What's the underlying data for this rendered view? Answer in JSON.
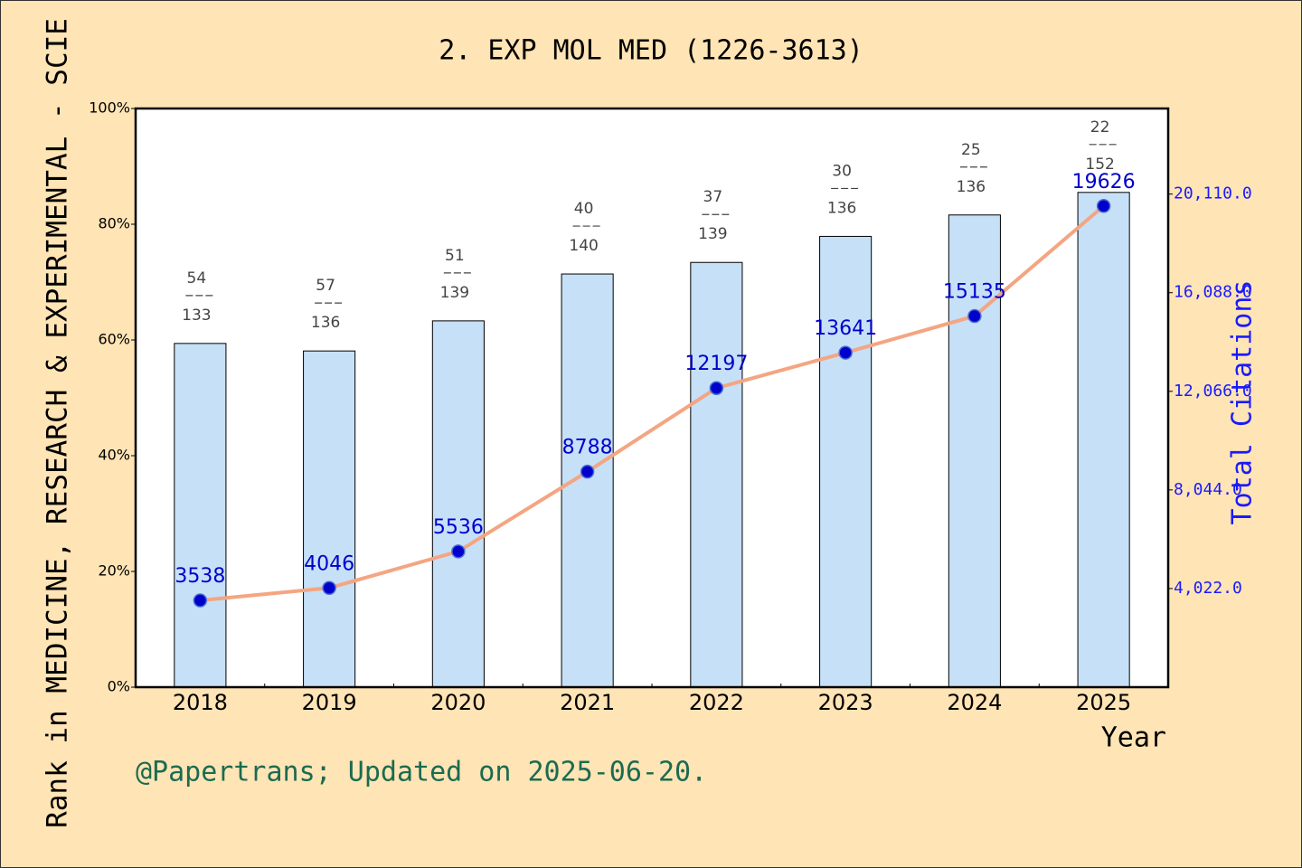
{
  "chart_data": {
    "type": "bar",
    "title": "2. EXP MOL MED (1226-3613)",
    "ylabel": "Rank in MEDICINE, RESEARCH & EXPERIMENTAL - SCIE",
    "y2label": "Total Citations",
    "xlabel": "Year",
    "note": "@Papertrans; Updated on 2025-06-20.",
    "categories": [
      "2018",
      "2019",
      "2020",
      "2021",
      "2022",
      "2023",
      "2024",
      "2025"
    ],
    "ranks": [
      54,
      57,
      51,
      40,
      37,
      30,
      25,
      22
    ],
    "totals": [
      133,
      136,
      139,
      140,
      139,
      136,
      136,
      152
    ],
    "series": [
      {
        "type": "bar",
        "color": "#c6e0f7",
        "values": [
          59.4,
          58.1,
          63.3,
          71.4,
          73.4,
          77.9,
          81.6,
          85.5
        ]
      },
      {
        "type": "line",
        "color": "#f4a582",
        "marker_color": "#0000cd",
        "axis": "y2",
        "values": [
          3538,
          4046,
          5536,
          8788,
          12197,
          13641,
          15135,
          19626
        ]
      }
    ],
    "ylim": [
      0,
      100
    ],
    "yticks": [
      {
        "value": 0,
        "label": "0%"
      },
      {
        "value": 20,
        "label": "20%"
      },
      {
        "value": 40,
        "label": "40%"
      },
      {
        "value": 60,
        "label": "60%"
      },
      {
        "value": 80,
        "label": "80%"
      },
      {
        "value": 100,
        "label": "100%"
      }
    ],
    "y2lim": [
      0,
      23600
    ],
    "y2ticks": [
      {
        "value": 4022,
        "label": "4,022.0"
      },
      {
        "value": 8044,
        "label": "8,044.0"
      },
      {
        "value": 12066,
        "label": "12,066.0"
      },
      {
        "value": 16088,
        "label": "16,088.0"
      },
      {
        "value": 20110,
        "label": "20,110.0"
      }
    ]
  }
}
